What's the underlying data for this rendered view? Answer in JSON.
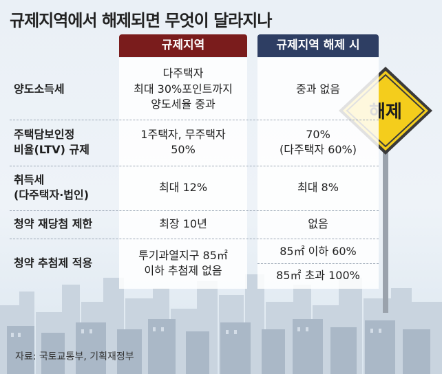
{
  "title": "규제지역에서 해제되면 무엇이 달라지나",
  "columns": {
    "before": "규제지역",
    "after": "규제지역 해제 시"
  },
  "rows": [
    {
      "label": "양도소득세",
      "before": "다주택자\n최대 30%포인트까지\n양도세율 중과",
      "after": "중과 없음"
    },
    {
      "label": "주택담보인정\n비율(LTV) 규제",
      "before": "1주택자, 무주택자\n50%",
      "after": "70%\n(다주택자 60%)"
    },
    {
      "label": "취득세\n(다주택자·법인)",
      "before": "최대 12%",
      "after": "최대 8%"
    },
    {
      "label": "청약 재당첨 제한",
      "before": "최장 10년",
      "after": "없음"
    },
    {
      "label": "청약 추첨제 적용",
      "before": "투기과열지구 85㎡\n이하 추첨제 없음",
      "after": "85㎡ 이하 60%",
      "after2": "85㎡ 초과 100%"
    }
  ],
  "sign": {
    "text": "해제",
    "color": "#f4cd1c"
  },
  "source": "자료: 국토교통부, 기획재정부",
  "colors": {
    "before_header": "#7a1c1c",
    "after_header": "#2e3e63"
  }
}
